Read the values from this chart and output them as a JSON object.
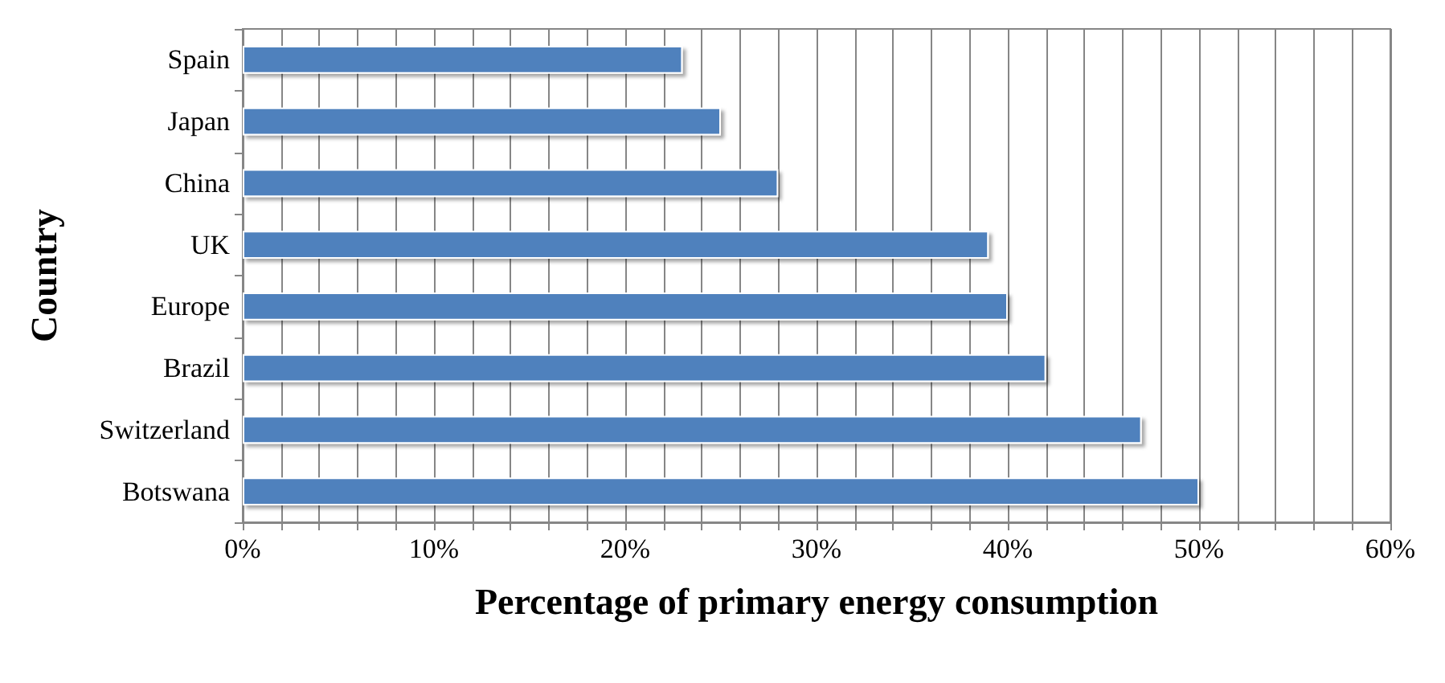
{
  "chart_data": {
    "type": "bar",
    "orientation": "horizontal",
    "xlabel": "Percentage of primary energy consumption",
    "ylabel": "Country",
    "categories": [
      "Spain",
      "Japan",
      "China",
      "UK",
      "Europe",
      "Brazil",
      "Switzerland",
      "Botswana"
    ],
    "values": [
      23,
      25,
      28,
      39,
      40,
      42,
      47,
      50
    ],
    "color": "#4f81bd",
    "xlim": [
      0,
      60
    ],
    "xticks": [
      {
        "value": 0,
        "label": "0%"
      },
      {
        "value": 2,
        "label": null
      },
      {
        "value": 4,
        "label": null
      },
      {
        "value": 6,
        "label": null
      },
      {
        "value": 8,
        "label": null
      },
      {
        "value": 10,
        "label": "10%"
      },
      {
        "value": 12,
        "label": null
      },
      {
        "value": 14,
        "label": null
      },
      {
        "value": 16,
        "label": null
      },
      {
        "value": 18,
        "label": null
      },
      {
        "value": 20,
        "label": "20%"
      },
      {
        "value": 22,
        "label": null
      },
      {
        "value": 24,
        "label": null
      },
      {
        "value": 26,
        "label": null
      },
      {
        "value": 28,
        "label": null
      },
      {
        "value": 30,
        "label": "30%"
      },
      {
        "value": 32,
        "label": null
      },
      {
        "value": 34,
        "label": null
      },
      {
        "value": 36,
        "label": null
      },
      {
        "value": 38,
        "label": null
      },
      {
        "value": 40,
        "label": "40%"
      },
      {
        "value": 42,
        "label": null
      },
      {
        "value": 44,
        "label": null
      },
      {
        "value": 46,
        "label": null
      },
      {
        "value": 48,
        "label": null
      },
      {
        "value": 50,
        "label": "50%"
      },
      {
        "value": 52,
        "label": null
      },
      {
        "value": 54,
        "label": null
      },
      {
        "value": 56,
        "label": null
      },
      {
        "value": 58,
        "label": null
      },
      {
        "value": 60,
        "label": "60%"
      }
    ],
    "grid": "x"
  }
}
